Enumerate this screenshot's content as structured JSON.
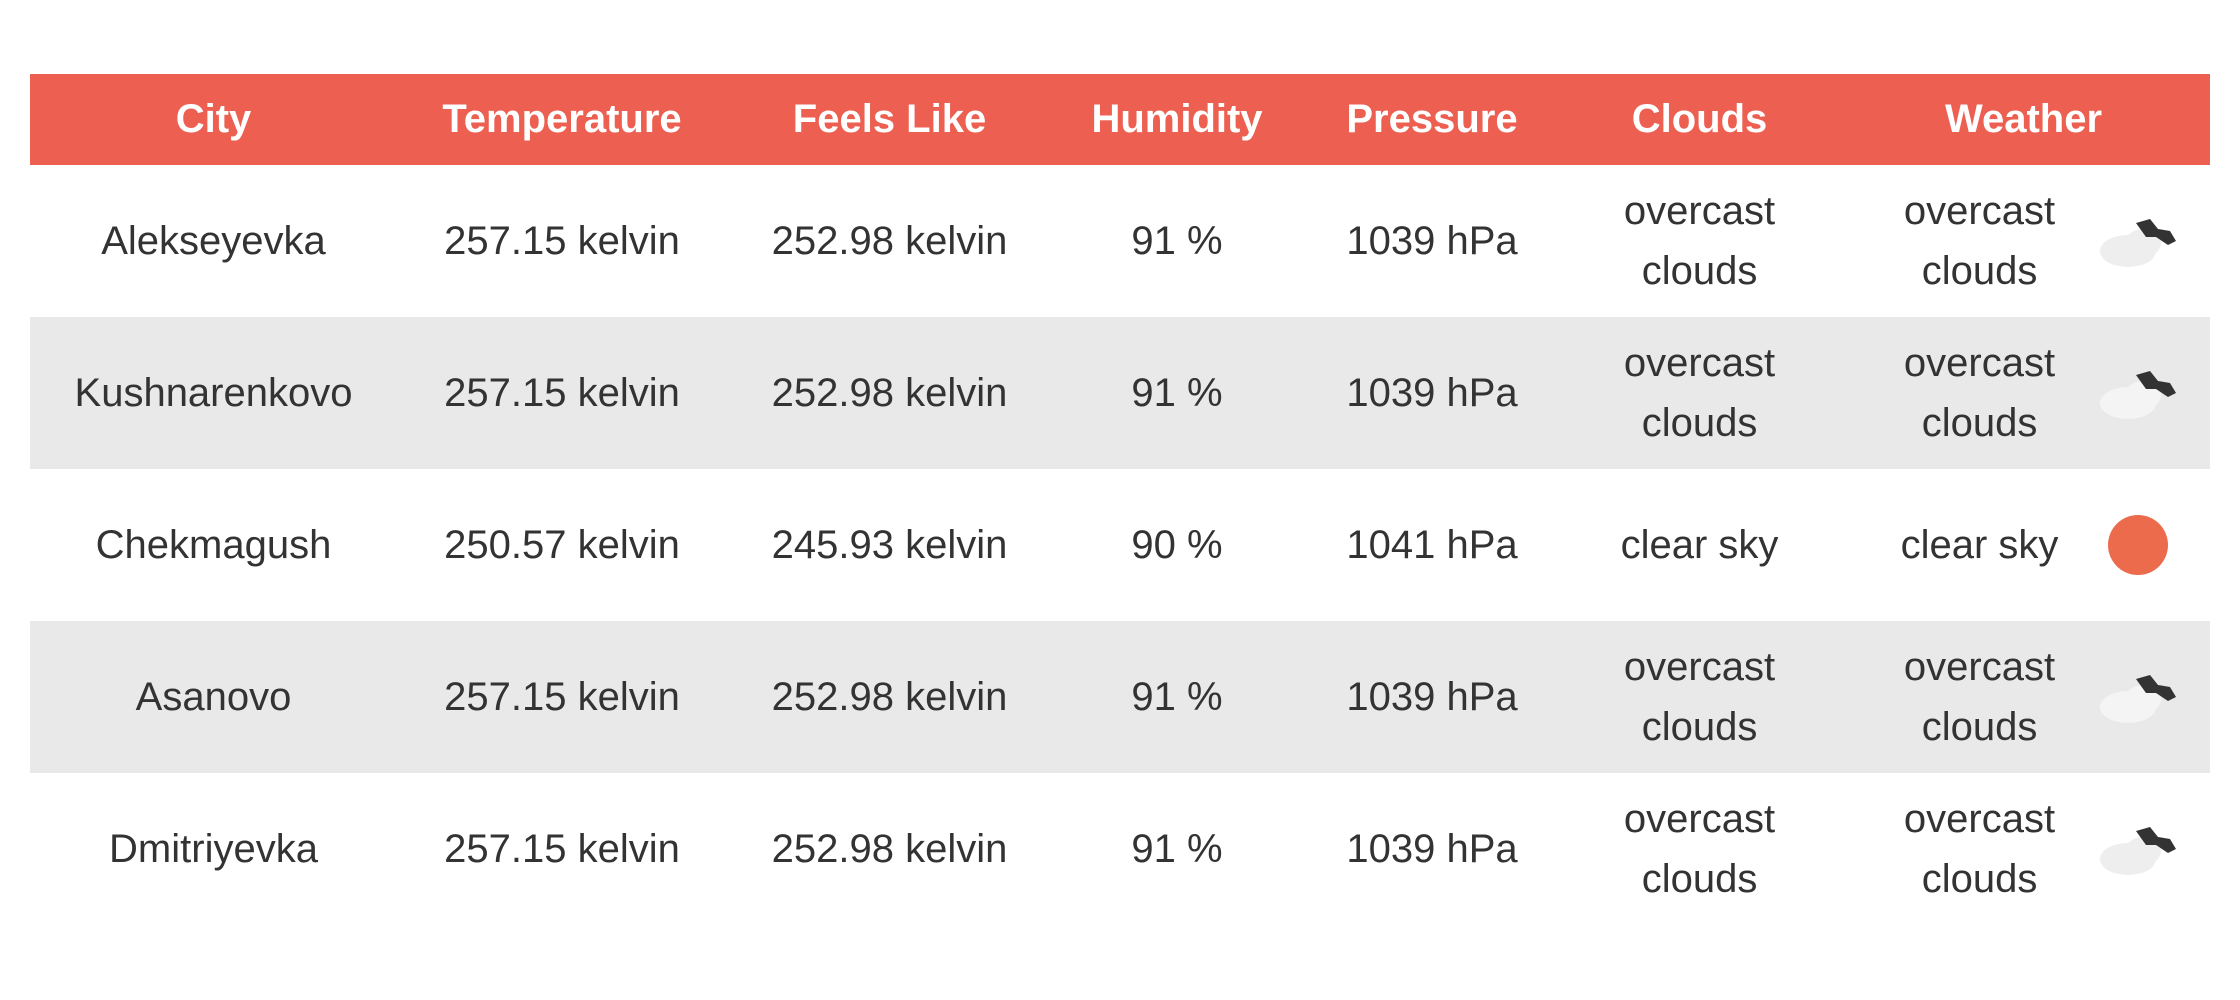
{
  "colors": {
    "header_bg": "#ec5f51",
    "header_text": "#ffffff",
    "alt_row_bg": "#e9e9e9",
    "sun": "#ec6b4c",
    "cloud_light": "#eeeeee",
    "cloud_dark": "#333333"
  },
  "table": {
    "headers": {
      "city": "City",
      "temperature": "Temperature",
      "feels_like": "Feels Like",
      "humidity": "Humidity",
      "pressure": "Pressure",
      "clouds": "Clouds",
      "weather": "Weather"
    },
    "rows": [
      {
        "city": "Alekseyevka",
        "temperature": "257.15 kelvin",
        "feels_like": "252.98 kelvin",
        "humidity": "91 %",
        "pressure": "1039 hPa",
        "clouds": "overcast clouds",
        "weather": "overcast clouds",
        "weather_icon": "overcast-clouds-icon"
      },
      {
        "city": "Kushnarenkovo",
        "temperature": "257.15 kelvin",
        "feels_like": "252.98 kelvin",
        "humidity": "91 %",
        "pressure": "1039 hPa",
        "clouds": "overcast clouds",
        "weather": "overcast clouds",
        "weather_icon": "overcast-clouds-icon"
      },
      {
        "city": "Chekmagush",
        "temperature": "250.57 kelvin",
        "feels_like": "245.93 kelvin",
        "humidity": "90 %",
        "pressure": "1041 hPa",
        "clouds": "clear sky",
        "weather": "clear sky",
        "weather_icon": "clear-sky-sun-icon"
      },
      {
        "city": "Asanovo",
        "temperature": "257.15 kelvin",
        "feels_like": "252.98 kelvin",
        "humidity": "91 %",
        "pressure": "1039 hPa",
        "clouds": "overcast clouds",
        "weather": "overcast clouds",
        "weather_icon": "overcast-clouds-icon"
      },
      {
        "city": "Dmitriyevka",
        "temperature": "257.15 kelvin",
        "feels_like": "252.98 kelvin",
        "humidity": "91 %",
        "pressure": "1039 hPa",
        "clouds": "overcast clouds",
        "weather": "overcast clouds",
        "weather_icon": "overcast-clouds-icon"
      }
    ]
  }
}
